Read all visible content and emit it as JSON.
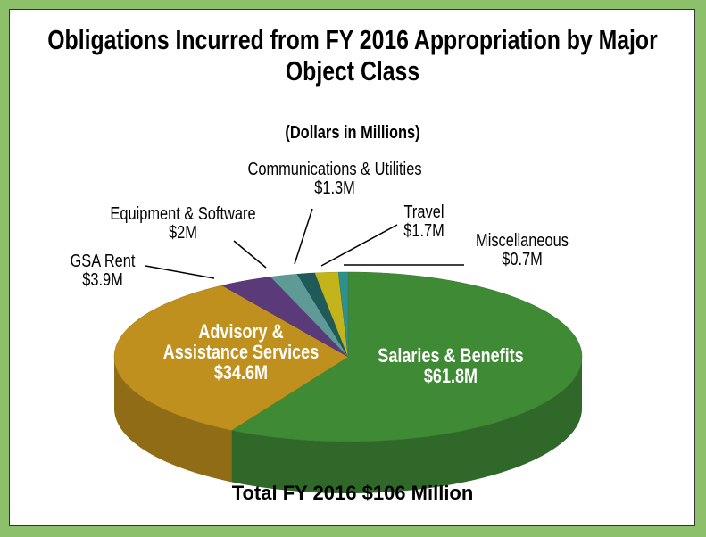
{
  "chart_data": {
    "type": "pie",
    "title": "Obligations Incurred from FY 2016 Appropriation by Major Object Class",
    "subtitle": "(Dollars in Millions)",
    "categories": [
      "Salaries & Benefits",
      "Advisory & Assistance Services",
      "GSA Rent",
      "Equipment & Software",
      "Communications & Utilities",
      "Travel",
      "Miscellaneous"
    ],
    "values": [
      61.8,
      34.6,
      3.9,
      2,
      1.3,
      1.7,
      0.7
    ],
    "value_labels": [
      "$61.8M",
      "$34.6M",
      "$3.9M",
      "$2M",
      "$1.3M",
      "$1.7M",
      "$0.7M"
    ],
    "colors": [
      "#3f8a35",
      "#c0901f",
      "#5b3a7a",
      "#5f9a96",
      "#1f5a5a",
      "#c3b41c",
      "#2f8f8a"
    ],
    "total_label": "Total FY 2016 $106 Million"
  }
}
